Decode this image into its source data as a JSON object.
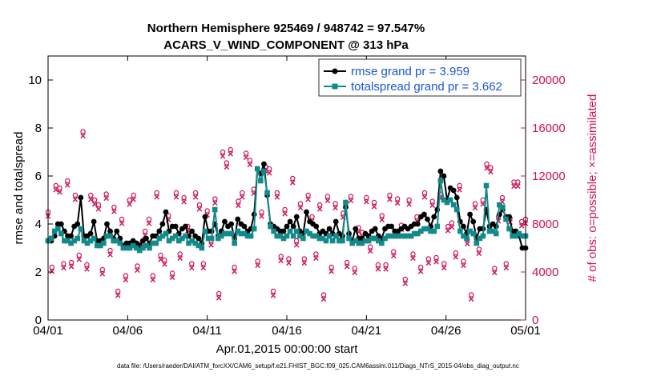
{
  "chart_data": {
    "type": "line",
    "title_line1": "Northern Hemisphere 925469 / 948742 = 97.547%",
    "title_line2": "ACARS_V_WIND_COMPONENT @ 313 hPa",
    "xlabel": "Apr.01,2015 00:00:00 start",
    "ylabel": "rmse and totalspread",
    "y2label": "# of obs: o=possible; ×=assimilated",
    "footer": "data file: /Users/raeder/DAI/ATM_forcXX/CAM6_setup/f.e21.FHIST_BGC.f09_025.CAM6assim.011/Diags_NTrS_2015-04/obs_diag_output.nc",
    "x_tick_labels": [
      "04/01",
      "04/06",
      "04/11",
      "04/16",
      "04/21",
      "04/26",
      "05/01"
    ],
    "x_tick_days": [
      0,
      5,
      10,
      15,
      20,
      25,
      30
    ],
    "xlim": [
      0,
      30
    ],
    "ylim": [
      0,
      11
    ],
    "y_ticks": [
      0,
      2,
      4,
      6,
      8,
      10
    ],
    "y2lim": [
      0,
      22000
    ],
    "y2_ticks": [
      0,
      4000,
      8000,
      12000,
      16000,
      20000
    ],
    "y2_tick_labels": [
      "0",
      "4000",
      "8000",
      "12000",
      "16000",
      "20000"
    ],
    "colors": {
      "rmse": "#000000",
      "spread": "#128a8a",
      "obs": "#d0105a",
      "legend_text": "#1a56db"
    },
    "series": [
      {
        "name": "rmse",
        "legend": "rmse grand pr = 3.959",
        "values": [
          3.3,
          3.3,
          3.5,
          4.0,
          4.0,
          3.7,
          3.5,
          3.5,
          3.9,
          4.0,
          5.1,
          3.5,
          3.5,
          3.6,
          4.1,
          3.3,
          3.3,
          3.4,
          4.0,
          3.7,
          3.4,
          3.7,
          3.4,
          3.1,
          3.2,
          3.2,
          3.3,
          3.2,
          3.1,
          3.3,
          3.4,
          3.2,
          3.5,
          3.5,
          3.7,
          4.0,
          4.5,
          3.7,
          3.9,
          3.9,
          3.6,
          3.8,
          3.9,
          3.5,
          3.7,
          3.5,
          3.4,
          3.2,
          4.3,
          3.7,
          3.7,
          4.0,
          3.5,
          3.7,
          4.1,
          3.9,
          4.0,
          3.4,
          4.2,
          4.0,
          3.9,
          3.7,
          3.8,
          4.4,
          6.3,
          6.1,
          6.5,
          5.2,
          4.0,
          3.9,
          3.8,
          3.7,
          3.7,
          3.9,
          4.1,
          3.9,
          4.3,
          3.7,
          3.6,
          4.5,
          4.1,
          4.0,
          3.9,
          3.6,
          3.7,
          3.6,
          3.8,
          3.6,
          4.1,
          3.6,
          3.5,
          4.7,
          3.6,
          3.3,
          3.8,
          3.4,
          3.4,
          3.6,
          3.5,
          3.7,
          3.8,
          3.5,
          3.4,
          3.8,
          3.9,
          3.9,
          3.7,
          3.7,
          3.8,
          3.9,
          3.8,
          3.9,
          4.0,
          4.0,
          4.3,
          4.4,
          4.2,
          3.9,
          4.3,
          4.6,
          6.2,
          6.0,
          5.0,
          5.5,
          5.4,
          5.1,
          4.1,
          3.9,
          3.6,
          4.4,
          4.1,
          3.4,
          3.8,
          3.8,
          4.6,
          3.9,
          4.0,
          3.9,
          4.4,
          4.6,
          4.3,
          4.3,
          3.7,
          3.7,
          3.5,
          3.0,
          3.0
        ]
      },
      {
        "name": "totalspread",
        "legend": "totalspread grand pr = 3.662",
        "values": [
          3.3,
          3.4,
          3.7,
          3.8,
          3.6,
          3.3,
          3.3,
          3.2,
          3.3,
          3.4,
          3.8,
          3.3,
          3.2,
          3.3,
          3.4,
          3.1,
          3.1,
          3.2,
          3.5,
          3.5,
          3.3,
          3.3,
          3.2,
          3.0,
          3.0,
          3.0,
          3.1,
          3.0,
          2.9,
          3.0,
          3.1,
          3.0,
          3.2,
          3.2,
          3.4,
          3.5,
          3.6,
          3.3,
          3.4,
          3.5,
          3.3,
          3.4,
          3.5,
          3.2,
          3.3,
          3.2,
          3.1,
          3.0,
          3.7,
          3.4,
          3.4,
          4.6,
          3.4,
          3.5,
          3.6,
          3.6,
          3.6,
          3.2,
          3.7,
          3.6,
          3.6,
          3.5,
          3.5,
          3.8,
          6.3,
          5.8,
          6.2,
          5.3,
          3.9,
          3.7,
          3.5,
          3.5,
          3.4,
          3.5,
          3.7,
          3.5,
          3.7,
          3.5,
          3.4,
          3.7,
          3.6,
          3.5,
          3.5,
          3.4,
          3.4,
          3.3,
          3.5,
          3.3,
          3.5,
          3.3,
          3.3,
          4.9,
          3.4,
          3.2,
          3.3,
          3.2,
          3.2,
          3.3,
          3.3,
          3.4,
          3.4,
          3.3,
          3.2,
          3.4,
          3.5,
          3.5,
          3.5,
          3.5,
          3.5,
          3.5,
          3.5,
          3.5,
          3.6,
          3.6,
          3.7,
          3.8,
          3.8,
          3.7,
          3.7,
          3.9,
          5.8,
          5.0,
          4.9,
          5.0,
          4.8,
          4.6,
          3.7,
          3.5,
          3.4,
          3.7,
          3.6,
          3.2,
          3.4,
          3.5,
          5.6,
          3.7,
          3.7,
          3.6,
          4.8,
          4.7,
          4.2,
          3.8,
          3.5,
          3.5,
          3.6,
          3.5,
          3.5
        ]
      }
    ],
    "obs_counts": [
      8800,
      4200,
      11000,
      10800,
      4500,
      11400,
      4600,
      10200,
      5200,
      15500,
      4400,
      10200,
      9800,
      9400,
      4000,
      10300,
      5600,
      9200,
      2200,
      8200,
      3500,
      9800,
      10200,
      4300,
      6200,
      7200,
      8200,
      3500,
      10400,
      5200,
      4800,
      8500,
      3700,
      10400,
      5300,
      10000,
      7600,
      4500,
      10400,
      9400,
      4500,
      8900,
      6400,
      9900,
      2000,
      13800,
      12900,
      14000,
      4200,
      9700,
      10400,
      13700,
      13100,
      10700,
      4700,
      8800,
      12600,
      12400,
      2200,
      10400,
      5100,
      9000,
      4900,
      11600,
      6400,
      9500,
      4900,
      10200,
      8400,
      5300,
      9400,
      1900,
      10100,
      4200,
      9500,
      6800,
      8700,
      4600,
      10100,
      4100,
      7500,
      7100,
      10000,
      5900,
      9600,
      4400,
      8500,
      4400,
      10200,
      5500,
      9900,
      7700,
      3200,
      9800,
      5300,
      8400,
      4200,
      10400,
      4900,
      9700,
      5000,
      10300,
      4500,
      7600,
      7900,
      5400,
      11000,
      4700,
      6500,
      1900,
      9500,
      5700,
      9800,
      12800,
      12500,
      4100,
      8400,
      10000,
      4500,
      8300,
      11300,
      11300,
      8000,
      8200
    ]
  }
}
